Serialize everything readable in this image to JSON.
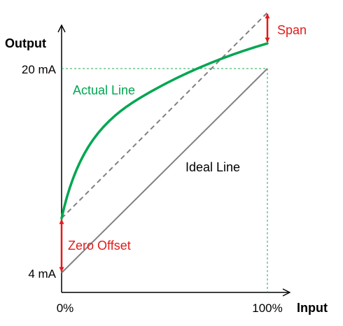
{
  "axes": {
    "y_title": "Output",
    "x_title": "Input",
    "y_ticks": [
      "20 mA",
      "4 mA"
    ],
    "x_ticks": [
      "0%",
      "100%"
    ]
  },
  "labels": {
    "actual_line": "Actual Line",
    "ideal_line": "Ideal Line",
    "span": "Span",
    "zero_offset": "Zero Offset"
  },
  "colors": {
    "actual": "#00a651",
    "ideal": "#808080",
    "error_markers": "#e21b1b",
    "axis": "#000000"
  }
}
